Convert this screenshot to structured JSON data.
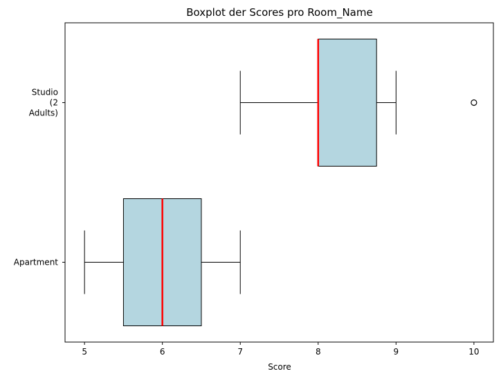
{
  "chart_data": {
    "type": "boxplot",
    "orientation": "horizontal",
    "title": "Boxplot der Scores pro Room_Name",
    "xlabel": "Score",
    "ylabel": "",
    "xlim": [
      4.75,
      10.25
    ],
    "xticks": [
      5,
      6,
      7,
      8,
      9,
      10
    ],
    "categories": [
      {
        "label_lines": [
          "Apartment"
        ]
      },
      {
        "label_lines": [
          "Studio",
          "(2",
          "Adults)"
        ]
      }
    ],
    "boxes": [
      {
        "category": "Apartment",
        "whisker_low": 5,
        "q1": 5.5,
        "median": 6,
        "q3": 6.5,
        "whisker_high": 7,
        "outliers": []
      },
      {
        "category": "Studio (2 Adults)",
        "whisker_low": 7,
        "q1": 8,
        "median": 8,
        "q3": 8.75,
        "whisker_high": 9,
        "outliers": [
          10
        ]
      }
    ],
    "grid": false,
    "legend": "none",
    "colors": {
      "box_fill": "#b4d6e0",
      "median": "#ff0000",
      "edge": "#000000"
    }
  }
}
